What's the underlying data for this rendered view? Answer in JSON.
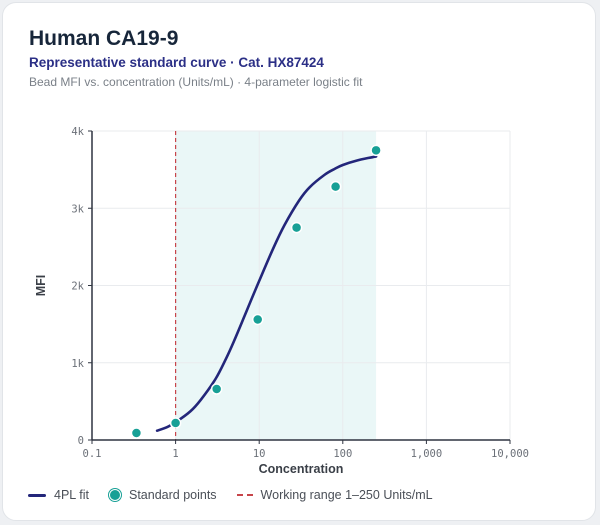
{
  "header": {
    "title": "Human CA19-9",
    "subtitle": "Representative standard curve · Cat. HX87424",
    "description": "Bead MFI vs. concentration (Units/mL) · 4-parameter logistic fit"
  },
  "colors": {
    "curve": "#23267a",
    "points": "#17a096",
    "range_line": "#c7454a",
    "range_fill": "#eaf7f7"
  },
  "chart_data": {
    "type": "line",
    "xlabel": "Concentration",
    "ylabel": "MFI",
    "x_scale": "log",
    "xlim": [
      0.1,
      10000
    ],
    "ylim": [
      0,
      4000
    ],
    "x_ticks": [
      0.1,
      1,
      10,
      100,
      1000,
      10000
    ],
    "x_tick_labels": [
      "0.1",
      "1",
      "10",
      "100",
      "1,000",
      "10,000"
    ],
    "y_ticks": [
      0,
      1000,
      2000,
      3000,
      4000
    ],
    "y_tick_labels": [
      "0",
      "1k",
      "2k",
      "3k",
      "4k"
    ],
    "grid": true,
    "legend_position": "bottom-left",
    "working_range": [
      1,
      250
    ],
    "series": [
      {
        "name": "4PL fit",
        "kind": "line",
        "x": [
          0.6,
          0.8,
          1,
          1.5,
          2,
          3,
          4,
          5,
          7,
          10,
          15,
          20,
          30,
          40,
          60,
          80,
          100,
          150,
          200,
          250
        ],
        "y": [
          120,
          170,
          230,
          370,
          520,
          790,
          1050,
          1280,
          1660,
          2060,
          2500,
          2780,
          3100,
          3270,
          3430,
          3510,
          3560,
          3620,
          3650,
          3670
        ]
      },
      {
        "name": "Standard points",
        "kind": "scatter",
        "x": [
          0.34,
          1.0,
          3.1,
          9.6,
          28,
          82,
          250
        ],
        "y": [
          90,
          220,
          660,
          1560,
          2750,
          3280,
          3750
        ]
      }
    ]
  },
  "legend": {
    "fit_label": "4PL fit",
    "points_label": "Standard points",
    "range_label": "Working range 1–250 Units/mL"
  }
}
